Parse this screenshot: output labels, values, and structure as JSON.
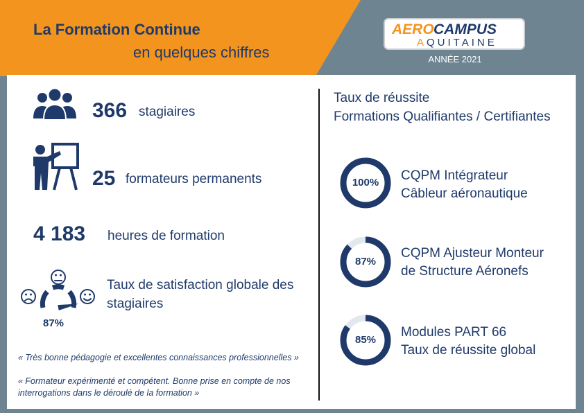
{
  "header": {
    "title_line1": "La Formation Continue",
    "title_line2": "en quelques chiffres",
    "logo_top_a": "AERO",
    "logo_top_b": "CAMPUS",
    "logo_bottom_a": "A",
    "logo_bottom_b": "QUITAINE",
    "year": "ANNÉE 2021"
  },
  "colors": {
    "orange": "#f2941d",
    "navy": "#1f3a6a",
    "slate": "#6e8491"
  },
  "stats": [
    {
      "icon": "group-icon",
      "value": "366",
      "label": "stagiaires"
    },
    {
      "icon": "trainer-icon",
      "value": "25",
      "label": "formateurs permanents"
    },
    {
      "value": "4 183",
      "label": "heures de formation"
    }
  ],
  "satisfaction": {
    "label_line1": "Taux de satisfaction globale des",
    "label_line2": "stagiaires",
    "value": "87%",
    "level": 0.87
  },
  "quotes": [
    "« Très bonne pédagogie et excellentes connaissances professionnelles »",
    "« Formateur expérimenté et compétent. Bonne prise en compte de nos",
    "interrogations dans le déroulé de la formation »"
  ],
  "success": {
    "title_line1": "Taux de réussite",
    "title_line2": "Formations Qualifiantes / Certifiantes",
    "items": [
      {
        "value": "100%",
        "pct": 1.0,
        "line1": "CQPM Intégrateur",
        "line2": "Câbleur aéronautique"
      },
      {
        "value": "87%",
        "pct": 0.87,
        "line1": "CQPM Ajusteur Monteur",
        "line2": "de Structure Aéronefs"
      },
      {
        "value": "85%",
        "pct": 0.85,
        "line1": "Modules PART 66",
        "line2": "Taux de réussite global"
      }
    ]
  }
}
